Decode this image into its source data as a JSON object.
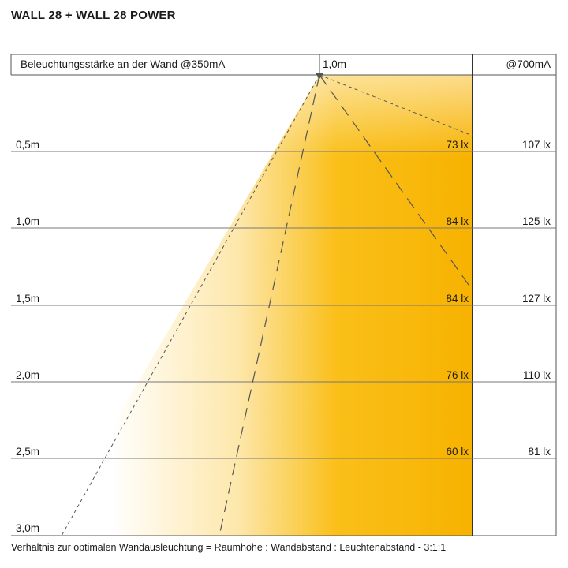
{
  "title": "WALL 28 + WALL 28 POWER",
  "header": {
    "left_label": "Beleuchtungsstärke an der Wand @350mA",
    "distance_label": "1,0m",
    "right_label": "@700mA"
  },
  "rows": [
    {
      "height": "0,5m",
      "lux_350": "73 lx",
      "lux_700": "107 lx"
    },
    {
      "height": "1,0m",
      "lux_350": "84 lx",
      "lux_700": "125 lx"
    },
    {
      "height": "1,5m",
      "lux_350": "84 lx",
      "lux_700": "127 lx"
    },
    {
      "height": "2,0m",
      "lux_350": "76 lx",
      "lux_700": "110 lx"
    },
    {
      "height": "2,5m",
      "lux_350": "60 lx",
      "lux_700": "81 lx"
    },
    {
      "height": "3,0m",
      "lux_350": "",
      "lux_700": ""
    }
  ],
  "footer": "Verhältnis zur optimalen Wandausleuchtung = Raumhöhe : Wandabstand : Leuchtenabstand - 3:1:1",
  "colors": {
    "beam": "#f9b800",
    "lines": "#4a4a4a"
  }
}
